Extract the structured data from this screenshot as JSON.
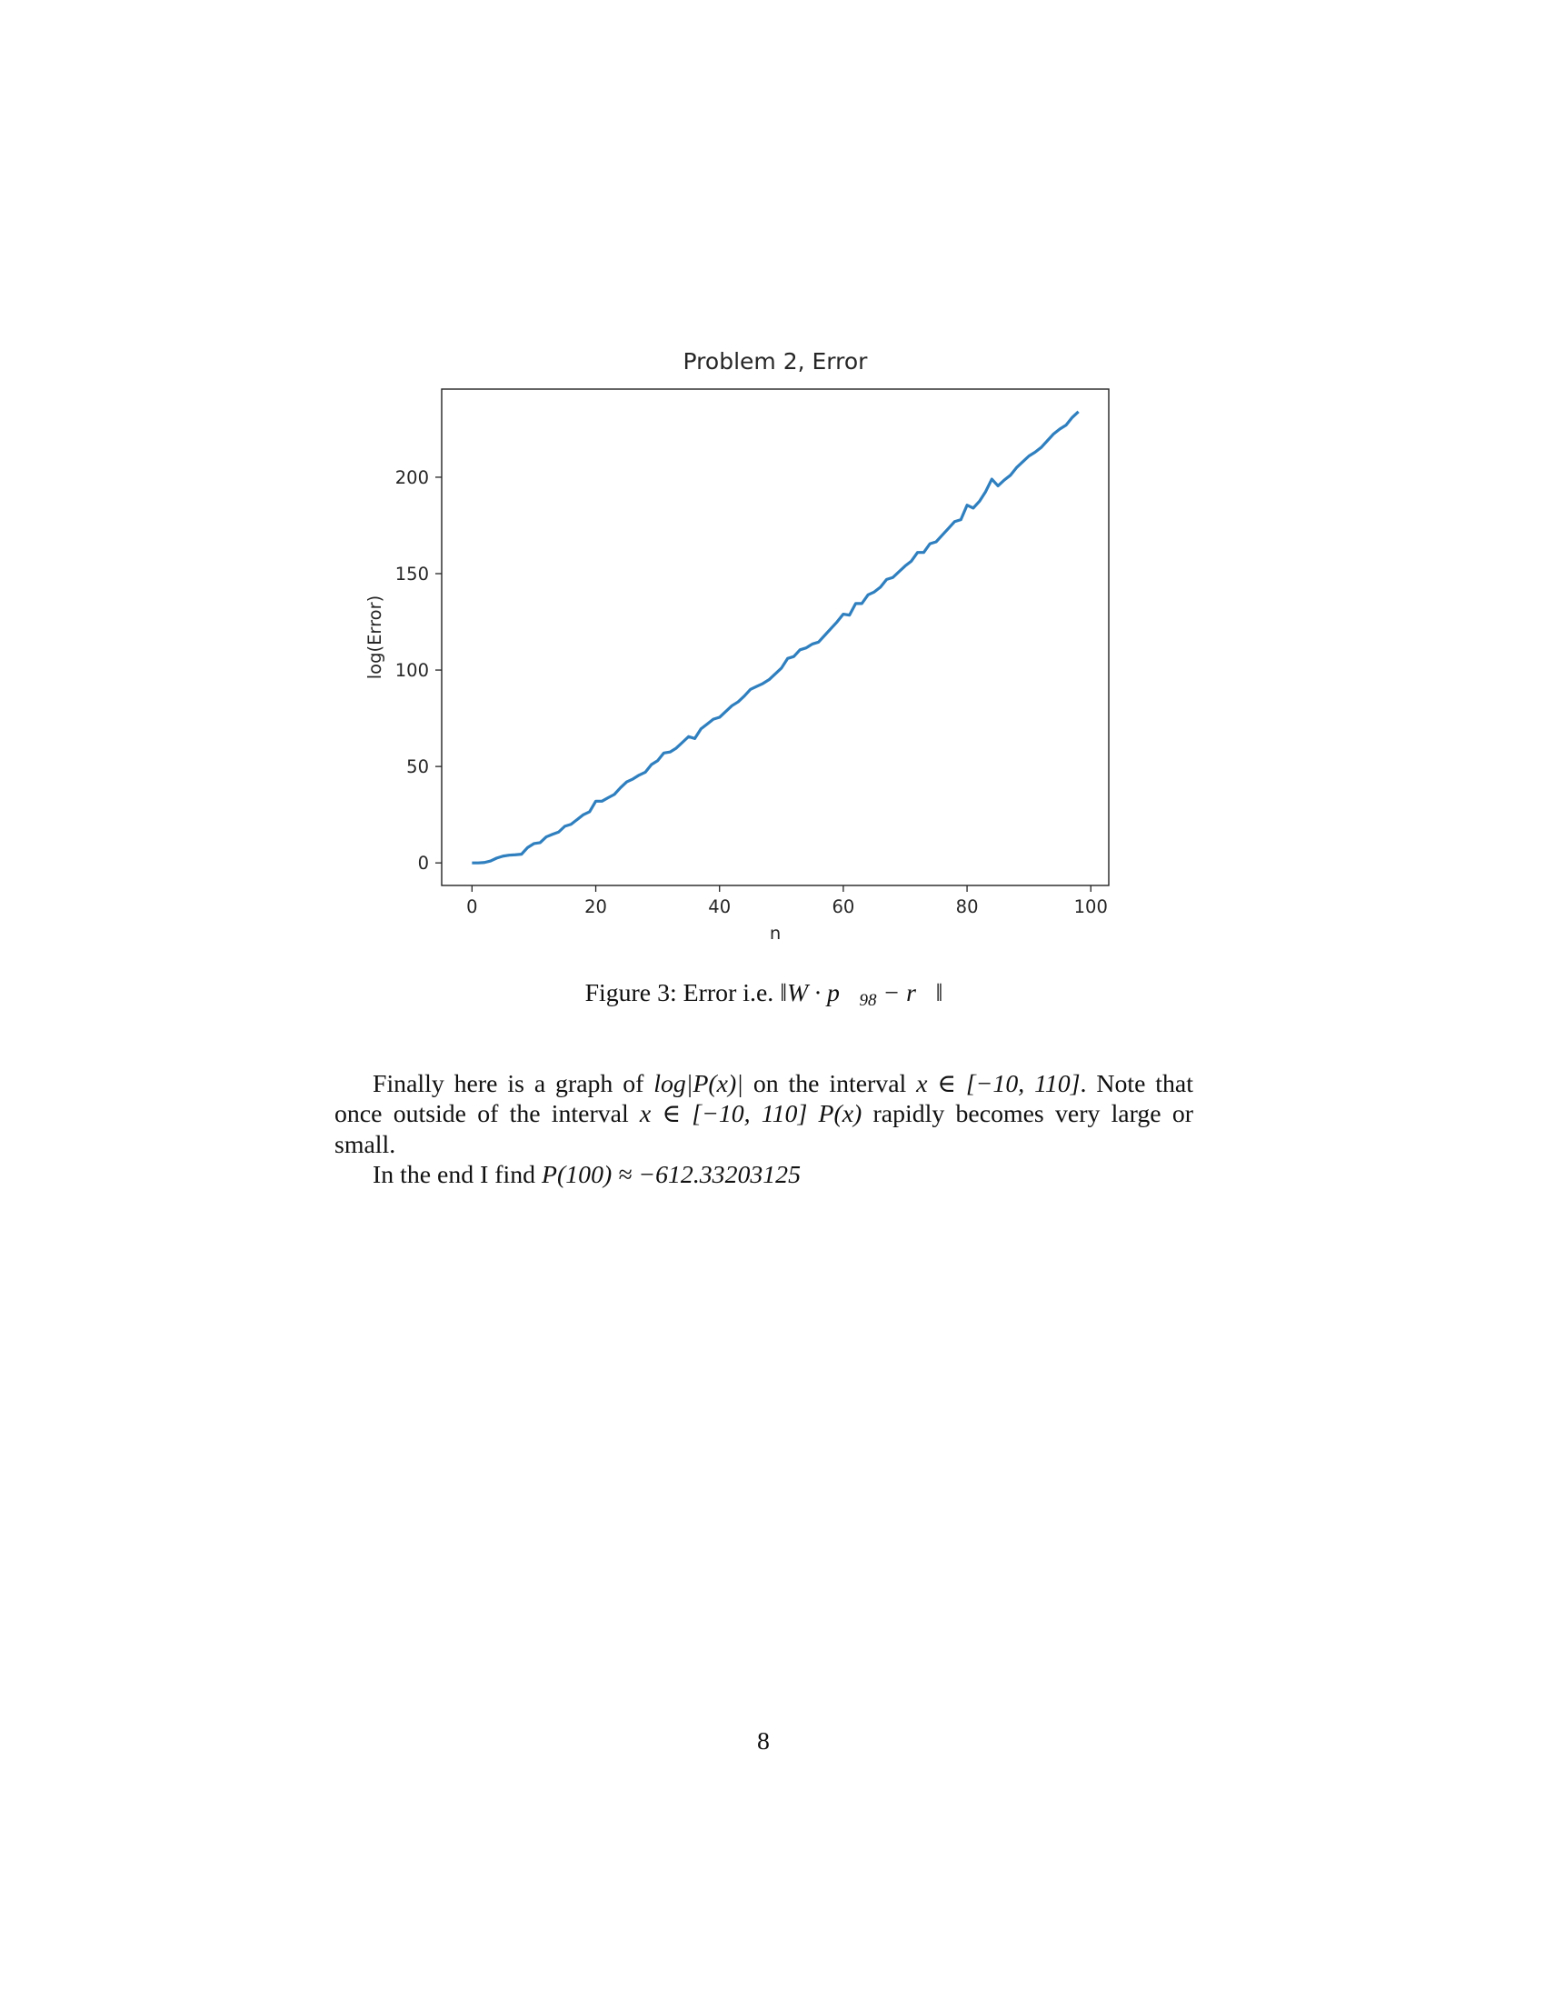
{
  "chart_data": {
    "type": "line",
    "title": "Problem 2, Error",
    "xlabel": "n",
    "ylabel": "log(Error)",
    "color": "#2f7fbf",
    "x": [
      0,
      1,
      2,
      3,
      4,
      5,
      6,
      7,
      8,
      9,
      10,
      11,
      12,
      13,
      14,
      15,
      16,
      17,
      18,
      19,
      20,
      21,
      22,
      23,
      24,
      25,
      26,
      27,
      28,
      29,
      30,
      31,
      32,
      33,
      34,
      35,
      36,
      37,
      38,
      39,
      40,
      41,
      42,
      43,
      44,
      45,
      46,
      47,
      48,
      49,
      50,
      51,
      52,
      53,
      54,
      55,
      56,
      57,
      58,
      59,
      60,
      61,
      62,
      63,
      64,
      65,
      66,
      67,
      68,
      69,
      70,
      71,
      72,
      73,
      74,
      75,
      76,
      77,
      78,
      79,
      80,
      81,
      82,
      83,
      84,
      85,
      86,
      87,
      88,
      89,
      90,
      91,
      92,
      93,
      94,
      95,
      96,
      97,
      98
    ],
    "values": [
      0,
      0,
      0.2,
      1,
      2.5,
      3.5,
      4,
      4.2,
      4.5,
      8,
      10,
      10.5,
      13.5,
      14.8,
      16,
      19,
      20,
      22.5,
      25,
      26.5,
      32,
      32,
      33.8,
      35.5,
      39,
      42,
      43.5,
      45.5,
      47,
      51,
      53,
      57,
      57.5,
      59.5,
      62.5,
      65.5,
      64.5,
      69.5,
      72,
      74.5,
      75.5,
      78.5,
      81.5,
      83.5,
      86.5,
      90,
      91.5,
      93,
      95,
      98,
      101,
      106,
      107,
      110.5,
      111.5,
      113.5,
      114.5,
      118,
      121.5,
      125,
      129,
      128.5,
      134.5,
      134.5,
      139,
      140.5,
      143,
      147,
      148,
      151,
      154,
      156.5,
      161,
      161,
      165.5,
      166.5,
      170,
      173.5,
      177,
      178,
      185.5,
      184,
      187.5,
      192.5,
      199,
      195.5,
      198.5,
      201,
      205,
      208,
      211,
      213,
      215.5,
      219,
      222.5,
      225,
      227,
      231,
      234
    ],
    "xlim": [
      -4.9,
      102.9
    ],
    "xticks": [
      0,
      20,
      40,
      60,
      80,
      100
    ],
    "ylim": [
      -11.7,
      245.7
    ],
    "yticks": [
      0,
      50,
      100,
      150,
      200
    ]
  },
  "caption": {
    "label": "Figure 3:",
    "text": "Error i.e.",
    "math_before": "‖W · ",
    "vector": "p⃗",
    "subscript": "98",
    "math_after": " − r⃗‖"
  },
  "paragraphs": [
    [
      "Finally here is a graph of ",
      "log|P(x)|",
      " on the interval ",
      "x ∈ [−10, 110]",
      ". Note that once outside of the interval ",
      "x ∈ [−10, 110] P(x)",
      " rapidly becomes very large or small."
    ],
    [
      "In the end I find ",
      "P(100) ≈ −612.33203125"
    ]
  ],
  "page_number": "8"
}
